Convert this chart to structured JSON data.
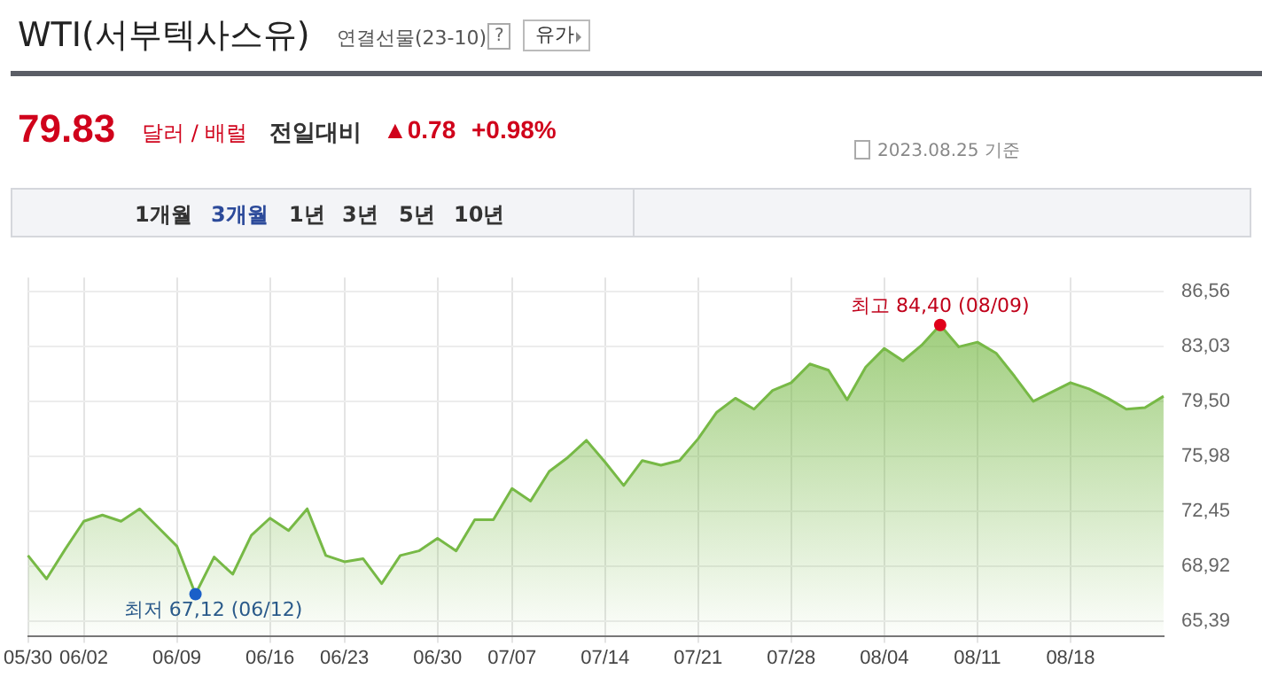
{
  "chart_data": {
    "type": "area",
    "title": "WTI(서부텍사스유)",
    "subtitle": "연결선물(23-10)",
    "categories": [
      "05/30",
      null,
      null,
      "06/02",
      null,
      null,
      null,
      null,
      "06/09",
      null,
      null,
      null,
      null,
      "06/16",
      null,
      null,
      null,
      "06/23",
      null,
      null,
      null,
      null,
      "06/30",
      null,
      null,
      null,
      "07/07",
      null,
      null,
      null,
      null,
      "07/14",
      null,
      null,
      null,
      null,
      "07/21",
      null,
      null,
      null,
      null,
      "07/28",
      null,
      null,
      null,
      null,
      "08/04",
      null,
      null,
      null,
      null,
      "08/11",
      null,
      null,
      null,
      null,
      "08/18",
      null,
      null,
      null,
      null,
      null
    ],
    "series": [
      {
        "color": "#77b946",
        "values": [
          69.6,
          68.1,
          70.0,
          71.8,
          72.2,
          71.8,
          72.6,
          71.4,
          70.2,
          67.12,
          69.5,
          68.4,
          70.9,
          72.0,
          71.2,
          72.6,
          69.6,
          69.2,
          69.4,
          67.8,
          69.6,
          69.9,
          70.7,
          69.9,
          71.9,
          71.9,
          73.9,
          73.1,
          75.0,
          75.9,
          77.0,
          75.6,
          74.1,
          75.7,
          75.4,
          75.7,
          77.1,
          78.8,
          79.7,
          79.0,
          80.2,
          80.7,
          81.9,
          81.5,
          79.6,
          81.7,
          82.9,
          82.1,
          83.1,
          84.4,
          83.0,
          83.3,
          82.6,
          81.1,
          79.5,
          80.1,
          80.7,
          80.3,
          79.7,
          79.0,
          79.1,
          79.83
        ]
      }
    ],
    "ylim": [
      64.44,
      87.45
    ],
    "yticks": [
      {
        "value": 65.39,
        "label": "65,39"
      },
      {
        "value": 68.92,
        "label": "68,92"
      },
      {
        "value": 72.45,
        "label": "72,45"
      },
      {
        "value": 75.98,
        "label": "75,98"
      },
      {
        "value": 79.5,
        "label": "79,50"
      },
      {
        "value": 83.03,
        "label": "83,03"
      },
      {
        "value": 86.56,
        "label": "86,56"
      }
    ],
    "grid": true,
    "legend": false,
    "marker": "none",
    "annotations": [
      "79.83",
      "달러 / 배럴",
      "전일대비",
      "▲0.78",
      "+0.98%",
      "2023.08.25 기준",
      "?",
      "유가",
      "1개월",
      "3개월",
      "1년",
      "3년",
      "5년",
      "10년",
      "최저 67,12 (06/12)",
      "최고 84,40 (08/09)"
    ]
  }
}
